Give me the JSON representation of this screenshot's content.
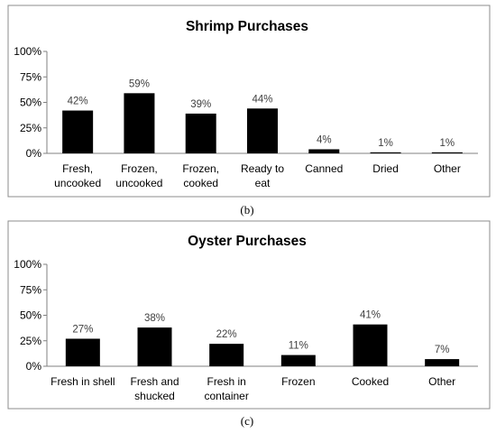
{
  "chart_data": [
    {
      "type": "bar",
      "title": "Shrimp Purchases",
      "caption": "(b)",
      "categories": [
        [
          "Fresh,",
          "uncooked"
        ],
        [
          "Frozen,",
          "uncooked"
        ],
        [
          "Frozen,",
          "cooked"
        ],
        [
          "Ready to",
          "eat"
        ],
        [
          "Canned"
        ],
        [
          "Dried"
        ],
        [
          "Other"
        ]
      ],
      "values": [
        42,
        59,
        39,
        44,
        4,
        1,
        1
      ],
      "data_labels": [
        "42%",
        "59%",
        "39%",
        "44%",
        "4%",
        "1%",
        "1%"
      ],
      "ylim": [
        0,
        100
      ],
      "yticks": [
        "0%",
        "25%",
        "50%",
        "75%",
        "100%"
      ],
      "grid": false,
      "bar_color": "#000000"
    },
    {
      "type": "bar",
      "title": "Oyster Purchases",
      "caption": "(c)",
      "categories": [
        [
          "Fresh in shell"
        ],
        [
          "Fresh and",
          "shucked"
        ],
        [
          "Fresh in",
          "container"
        ],
        [
          "Frozen"
        ],
        [
          "Cooked"
        ],
        [
          "Other"
        ]
      ],
      "values": [
        27,
        38,
        22,
        11,
        41,
        7
      ],
      "data_labels": [
        "27%",
        "38%",
        "22%",
        "11%",
        "41%",
        "7%"
      ],
      "ylim": [
        0,
        100
      ],
      "yticks": [
        "0%",
        "25%",
        "50%",
        "75%",
        "100%"
      ],
      "grid": false,
      "bar_color": "#000000"
    }
  ]
}
